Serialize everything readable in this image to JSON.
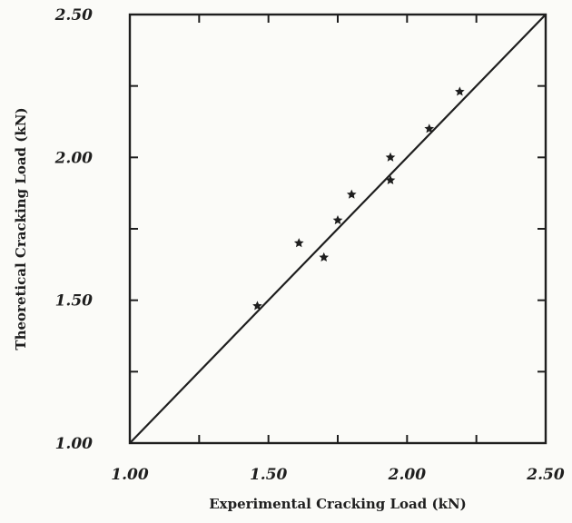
{
  "chart_data": {
    "type": "scatter",
    "title": "",
    "xlabel": "Experimental Cracking Load (kN)",
    "ylabel": "Theoretical Cracking Load (kN)",
    "xlim": [
      1.0,
      2.5
    ],
    "ylim": [
      1.0,
      2.5
    ],
    "x_ticks": [
      1.0,
      1.25,
      1.5,
      1.75,
      2.0,
      2.25,
      2.5
    ],
    "y_ticks": [
      1.0,
      1.25,
      1.5,
      1.75,
      2.0,
      2.25,
      2.5
    ],
    "x_tick_labels": [
      "1.00",
      "1.50",
      "2.00",
      "2.50"
    ],
    "x_tick_label_values": [
      1.0,
      1.5,
      2.0,
      2.5
    ],
    "y_tick_labels": [
      "1.00",
      "1.50",
      "2.00",
      "2.50"
    ],
    "y_tick_label_values": [
      1.0,
      1.5,
      2.0,
      2.5
    ],
    "grid": false,
    "reference_line": {
      "kind": "y = x",
      "from": [
        1.0,
        1.0
      ],
      "to": [
        2.5,
        2.5
      ]
    },
    "series": [
      {
        "marker": "star",
        "color": "#1e1e1e",
        "points": [
          {
            "x": 1.46,
            "y": 1.48
          },
          {
            "x": 1.61,
            "y": 1.7
          },
          {
            "x": 1.7,
            "y": 1.65
          },
          {
            "x": 1.75,
            "y": 1.78
          },
          {
            "x": 1.8,
            "y": 1.87
          },
          {
            "x": 1.94,
            "y": 2.0
          },
          {
            "x": 1.94,
            "y": 1.92
          },
          {
            "x": 2.08,
            "y": 2.1
          },
          {
            "x": 2.19,
            "y": 2.23
          }
        ]
      }
    ]
  }
}
